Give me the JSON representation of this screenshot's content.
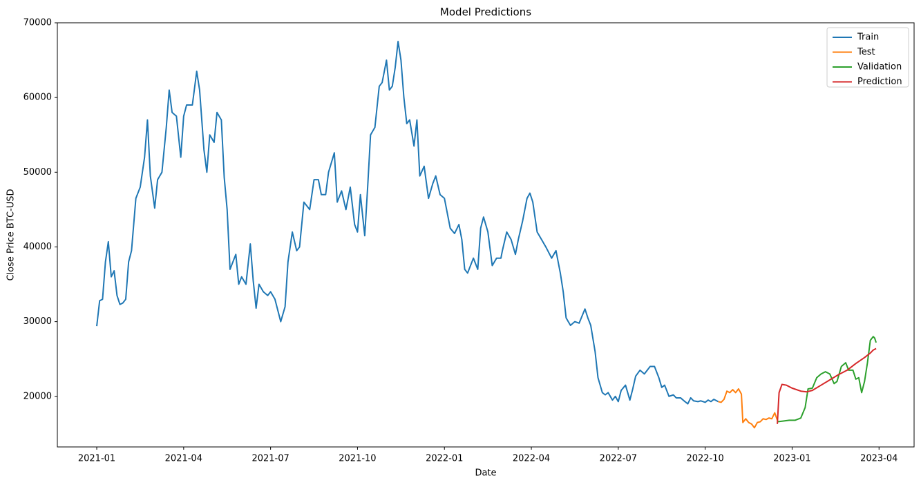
{
  "chart_data": {
    "type": "line",
    "title": "Model Predictions",
    "x_label": "Date",
    "y_label": "Close Price BTC-USD",
    "xlim": [
      -1.36,
      28.21
    ],
    "ylim": [
      13230,
      70000
    ],
    "xticks": [
      {
        "value": 0,
        "label": "2021-01"
      },
      {
        "value": 3,
        "label": "2021-04"
      },
      {
        "value": 6,
        "label": "2021-07"
      },
      {
        "value": 9,
        "label": "2021-10"
      },
      {
        "value": 12,
        "label": "2022-01"
      },
      {
        "value": 15,
        "label": "2022-04"
      },
      {
        "value": 18,
        "label": "2022-07"
      },
      {
        "value": 21,
        "label": "2022-10"
      },
      {
        "value": 24,
        "label": "2023-01"
      },
      {
        "value": 27,
        "label": "2023-04"
      }
    ],
    "yticks": [
      20000,
      30000,
      40000,
      50000,
      60000,
      70000
    ],
    "legend": "upper right",
    "series": [
      {
        "name": "Train",
        "color": "#1f77b4",
        "x": [
          0,
          0.1,
          0.2,
          0.3,
          0.4,
          0.5,
          0.6,
          0.7,
          0.8,
          0.9,
          1.0,
          1.1,
          1.2,
          1.35,
          1.5,
          1.65,
          1.75,
          1.85,
          2.0,
          2.1,
          2.25,
          2.4,
          2.5,
          2.6,
          2.75,
          2.9,
          3.0,
          3.1,
          3.3,
          3.45,
          3.55,
          3.7,
          3.8,
          3.9,
          4.05,
          4.15,
          4.3,
          4.4,
          4.5,
          4.6,
          4.7,
          4.8,
          4.9,
          5.0,
          5.15,
          5.3,
          5.4,
          5.5,
          5.6,
          5.75,
          5.9,
          6.0,
          6.15,
          6.25,
          6.35,
          6.5,
          6.6,
          6.75,
          6.9,
          7.0,
          7.15,
          7.35,
          7.5,
          7.65,
          7.75,
          7.9,
          8.0,
          8.2,
          8.3,
          8.45,
          8.6,
          8.75,
          8.9,
          9.0,
          9.1,
          9.25,
          9.35,
          9.45,
          9.6,
          9.75,
          9.85,
          10.0,
          10.1,
          10.2,
          10.3,
          10.4,
          10.5,
          10.6,
          10.7,
          10.8,
          10.95,
          11.05,
          11.15,
          11.3,
          11.45,
          11.6,
          11.7,
          11.85,
          12.0,
          12.2,
          12.35,
          12.5,
          12.6,
          12.7,
          12.8,
          12.9,
          13.0,
          13.15,
          13.25,
          13.35,
          13.5,
          13.65,
          13.8,
          13.95,
          14.0,
          14.15,
          14.3,
          14.45,
          14.55,
          14.7,
          14.85,
          14.95,
          15.05,
          15.2,
          15.35,
          15.5,
          15.7,
          15.85,
          16.0,
          16.1,
          16.2,
          16.35,
          16.5,
          16.65,
          16.85,
          16.95,
          17.05,
          17.2,
          17.3,
          17.45,
          17.55,
          17.65,
          17.8,
          17.9,
          18.0,
          18.1,
          18.25,
          18.4,
          18.5,
          18.6,
          18.75,
          18.9,
          19.1,
          19.25,
          19.4,
          19.5,
          19.6,
          19.75,
          19.9,
          20.0,
          20.15,
          20.3,
          20.4,
          20.5,
          20.6,
          20.75,
          20.85,
          21.0,
          21.1,
          21.2,
          21.3,
          21.45
        ],
        "values": [
          29400,
          32800,
          33000,
          38000,
          40700,
          36000,
          36800,
          33500,
          32300,
          32500,
          33000,
          38000,
          39500,
          46500,
          48000,
          52000,
          57000,
          49500,
          45200,
          49000,
          50000,
          56000,
          61000,
          58000,
          57500,
          52000,
          57500,
          59000,
          59000,
          63500,
          61000,
          53000,
          50000,
          55000,
          54000,
          58000,
          57000,
          49300,
          45000,
          37000,
          38000,
          39000,
          35000,
          36000,
          35000,
          40400,
          35500,
          31800,
          35000,
          34000,
          33500,
          34000,
          33000,
          31500,
          30000,
          32000,
          38000,
          42000,
          39500,
          40000,
          46000,
          45000,
          49000,
          49000,
          47000,
          47000,
          50000,
          52600,
          46000,
          47500,
          45000,
          48000,
          43000,
          42000,
          47000,
          41500,
          48000,
          55000,
          56000,
          61500,
          62000,
          65000,
          61000,
          61500,
          64000,
          67500,
          65000,
          60000,
          56500,
          57000,
          53500,
          57000,
          49500,
          50800,
          46500,
          48500,
          49500,
          47000,
          46500,
          42500,
          41800,
          43000,
          41000,
          37000,
          36500,
          37500,
          38500,
          37000,
          42500,
          44000,
          42000,
          37500,
          38500,
          38500,
          39500,
          42000,
          41000,
          39000,
          41000,
          43500,
          46500,
          47200,
          46000,
          42000,
          41000,
          40000,
          38500,
          39500,
          36500,
          34000,
          30500,
          29500,
          30000,
          29800,
          31700,
          30500,
          29500,
          26000,
          22500,
          20500,
          20200,
          20500,
          19500,
          20000,
          19300,
          20800,
          21500,
          19500,
          21000,
          22700,
          23500,
          23000,
          24000,
          24000,
          22500,
          21200,
          21500,
          20000,
          20200,
          19800,
          19800,
          19300,
          19000,
          19800,
          19400,
          19300,
          19400,
          19200,
          19500,
          19300,
          19600,
          19300
        ]
      },
      {
        "name": "Test",
        "color": "#ff7f0e",
        "x": [
          21.45,
          21.55,
          21.65,
          21.75,
          21.85,
          21.95,
          22.05,
          22.15,
          22.25,
          22.3,
          22.4,
          22.5,
          22.6,
          22.7,
          22.8,
          22.9,
          23.0,
          23.1,
          23.2,
          23.3,
          23.4,
          23.5
        ],
        "values": [
          19300,
          19200,
          19600,
          20700,
          20500,
          20900,
          20500,
          21000,
          20300,
          16500,
          17000,
          16500,
          16300,
          15800,
          16500,
          16600,
          17000,
          16900,
          17100,
          17000,
          17800,
          16700
        ]
      },
      {
        "name": "Validation",
        "color": "#2ca02c",
        "x": [
          23.5,
          23.7,
          23.9,
          24.1,
          24.3,
          24.45,
          24.55,
          24.7,
          24.85,
          25.0,
          25.15,
          25.3,
          25.45,
          25.55,
          25.7,
          25.85,
          25.95,
          26.1,
          26.2,
          26.3,
          26.4,
          26.5,
          26.6,
          26.7,
          26.8,
          26.85,
          26.9
        ],
        "values": [
          16600,
          16700,
          16800,
          16800,
          17100,
          18500,
          21000,
          21100,
          22500,
          23000,
          23300,
          23000,
          21700,
          22000,
          24000,
          24500,
          23500,
          23500,
          22300,
          22500,
          20500,
          22000,
          24500,
          27500,
          28000,
          27800,
          27200
        ]
      },
      {
        "name": "Prediction",
        "color": "#d62728",
        "x": [
          23.49,
          23.55,
          23.65,
          23.8,
          24.0,
          24.3,
          24.5,
          24.7,
          25.0,
          25.3,
          25.6,
          25.9,
          26.2,
          26.5,
          26.7,
          26.8,
          26.9
        ],
        "values": [
          16300,
          20500,
          21600,
          21500,
          21100,
          20700,
          20600,
          20800,
          21500,
          22200,
          22900,
          23500,
          24400,
          25200,
          25800,
          26200,
          26400
        ]
      }
    ]
  }
}
